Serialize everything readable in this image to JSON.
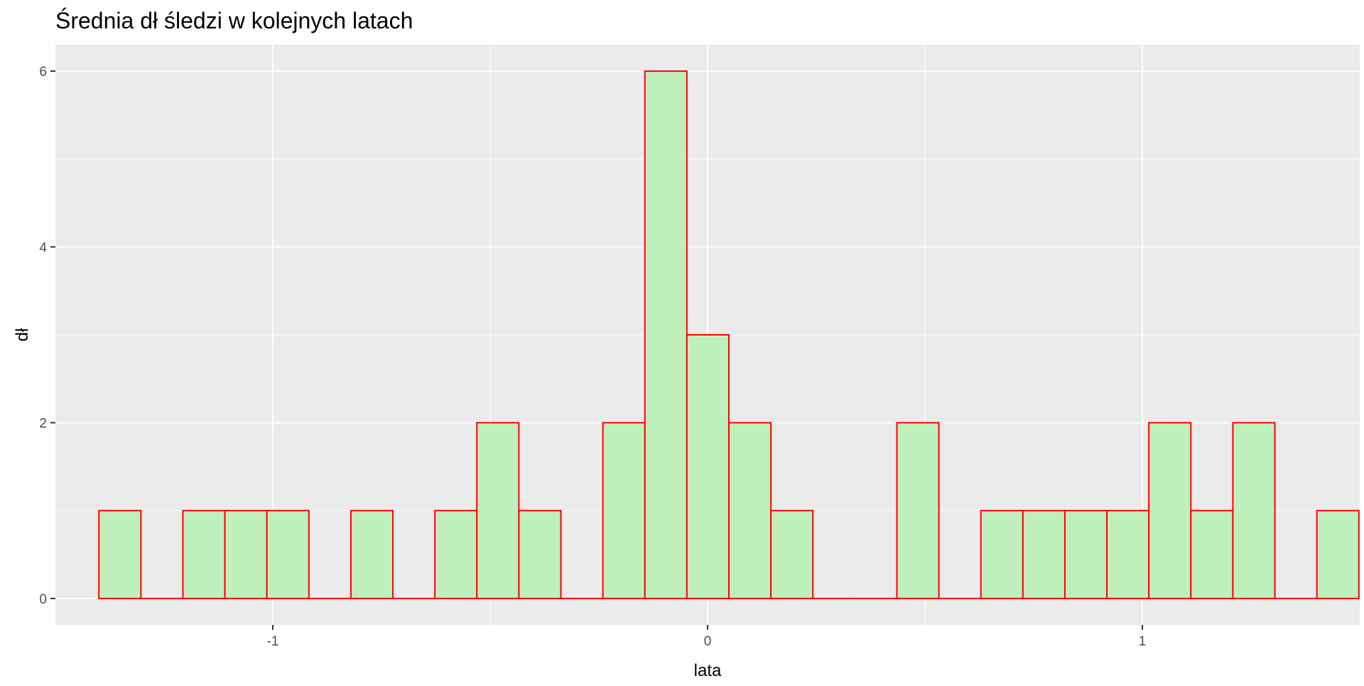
{
  "chart_data": {
    "type": "bar",
    "title": "Średnia dł śledzi w kolejnych latach",
    "xlabel": "lata",
    "ylabel": "dł",
    "xlim": [
      -1.5,
      1.5
    ],
    "ylim": [
      -0.3,
      6.3
    ],
    "x_ticks": [
      {
        "value": -1,
        "label": "-1"
      },
      {
        "value": 0,
        "label": "0"
      },
      {
        "value": 1,
        "label": "1"
      }
    ],
    "y_ticks": [
      {
        "value": 0,
        "label": "0"
      },
      {
        "value": 2,
        "label": "2"
      },
      {
        "value": 4,
        "label": "4"
      },
      {
        "value": 6,
        "label": "6"
      }
    ],
    "bins": {
      "start": -1.4,
      "width": 0.0966,
      "counts": [
        1,
        0,
        1,
        1,
        1,
        0,
        1,
        0,
        1,
        2,
        1,
        0,
        2,
        6,
        3,
        2,
        1,
        0,
        0,
        2,
        0,
        1,
        1,
        1,
        1,
        2,
        1,
        2,
        0,
        1
      ]
    },
    "fill_color": "#bff0bc",
    "border_color": "#ff0000",
    "panel_background": "#ebebeb",
    "grid": true,
    "legend": "none"
  }
}
